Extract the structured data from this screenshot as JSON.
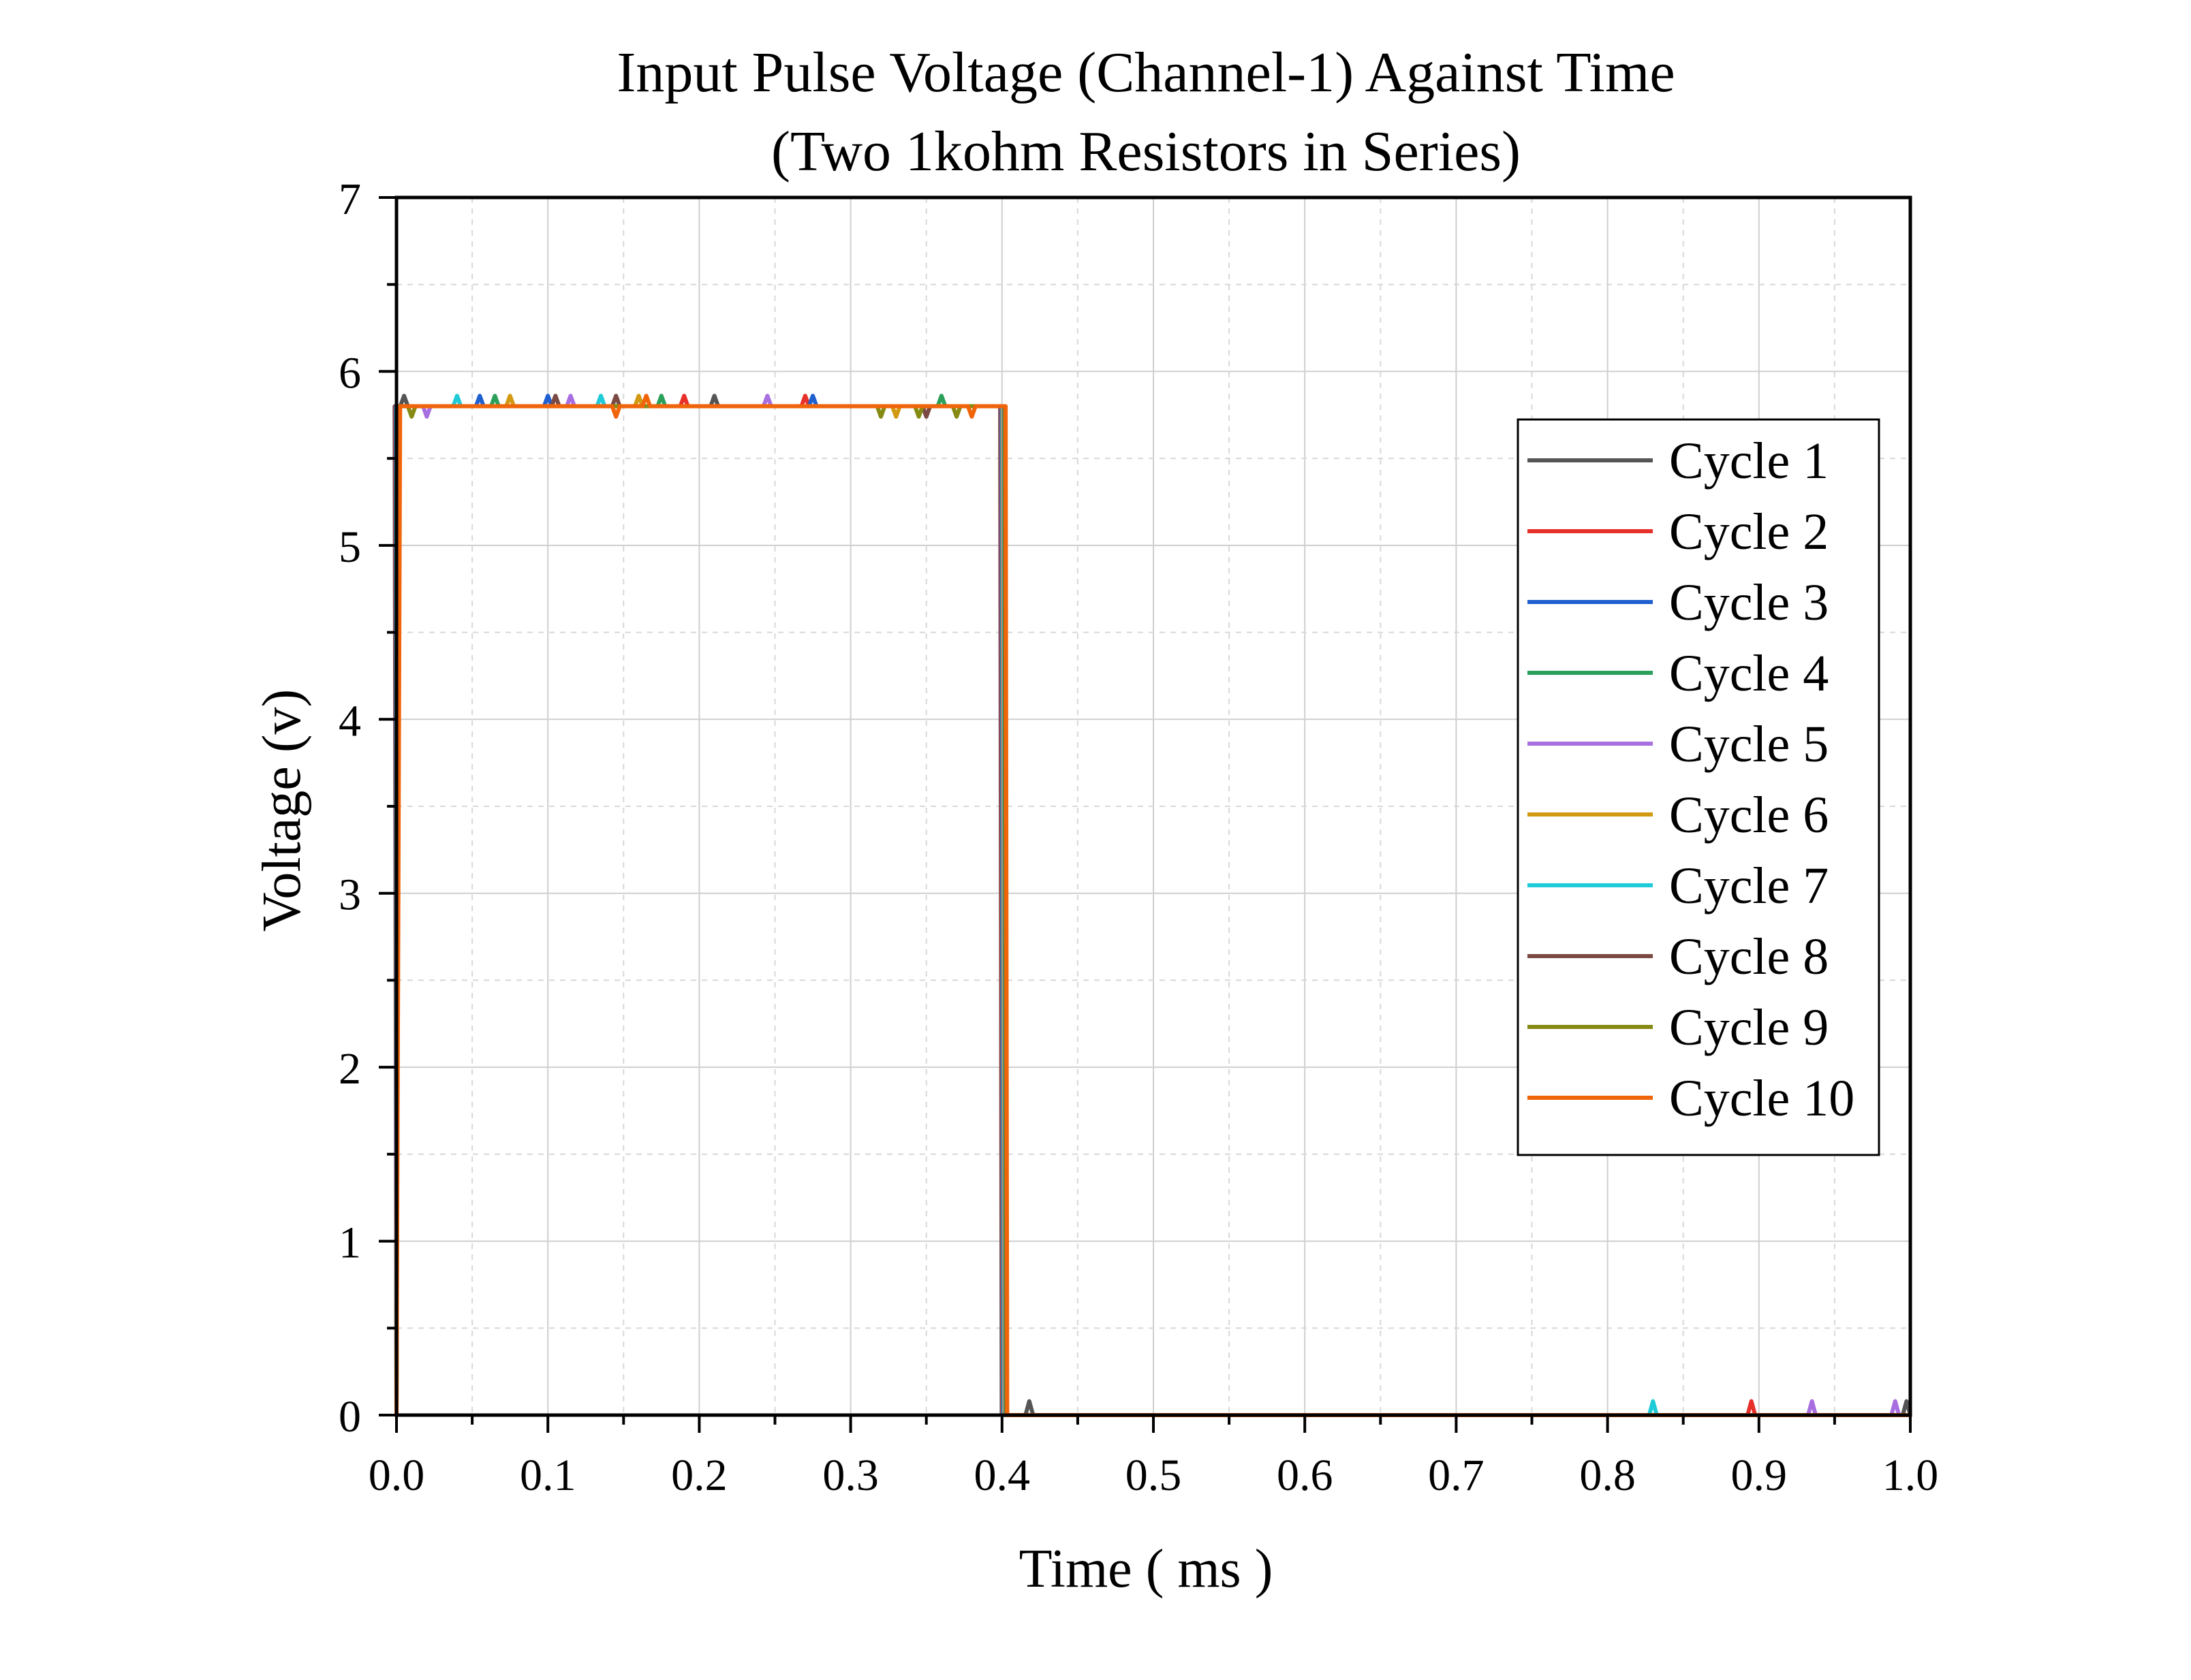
{
  "chart_data": {
    "type": "line",
    "title": "Input Pulse Voltage (Channel-1) Against Time",
    "subtitle": "(Two 1kohm Resistors in Series)",
    "xlabel": "Time ( ms )",
    "ylabel": "Voltage (v)",
    "xlim": [
      0.0,
      1.0
    ],
    "ylim": [
      0,
      7
    ],
    "x_ticks": [
      "0.0",
      "0.1",
      "0.2",
      "0.3",
      "0.4",
      "0.5",
      "0.6",
      "0.7",
      "0.8",
      "0.9",
      "1.0"
    ],
    "y_ticks": [
      "0",
      "1",
      "2",
      "3",
      "4",
      "5",
      "6",
      "7"
    ],
    "grid": true,
    "legend_position": "right",
    "pulse_shape": {
      "rise_at": 0.0,
      "fall_at": 0.4,
      "high": 5.8,
      "low": 0.0
    },
    "series": [
      {
        "name": "Cycle 1",
        "color": "#555555",
        "glitches": [
          [
            0.005,
            5.86
          ],
          [
            0.21,
            5.86
          ],
          [
            0.418,
            0.08
          ],
          [
            1.0,
            0.08
          ]
        ]
      },
      {
        "name": "Cycle 2",
        "color": "#e8302a",
        "glitches": [
          [
            0.19,
            5.86
          ],
          [
            0.27,
            5.86
          ],
          [
            0.895,
            0.08
          ]
        ]
      },
      {
        "name": "Cycle 3",
        "color": "#1f5fcf",
        "glitches": [
          [
            0.055,
            5.86
          ],
          [
            0.1,
            5.86
          ],
          [
            0.275,
            5.86
          ]
        ]
      },
      {
        "name": "Cycle 4",
        "color": "#2ca05a",
        "glitches": [
          [
            0.065,
            5.86
          ],
          [
            0.175,
            5.86
          ],
          [
            0.36,
            5.86
          ]
        ]
      },
      {
        "name": "Cycle 5",
        "color": "#a86fe0",
        "glitches": [
          [
            0.02,
            5.74
          ],
          [
            0.115,
            5.86
          ],
          [
            0.245,
            5.86
          ],
          [
            0.935,
            0.08
          ],
          [
            0.99,
            0.08
          ]
        ]
      },
      {
        "name": "Cycle 6",
        "color": "#d29a13",
        "glitches": [
          [
            0.075,
            5.86
          ],
          [
            0.16,
            5.86
          ],
          [
            0.33,
            5.74
          ]
        ]
      },
      {
        "name": "Cycle 7",
        "color": "#1ecbd6",
        "glitches": [
          [
            0.04,
            5.86
          ],
          [
            0.135,
            5.86
          ],
          [
            0.83,
            0.08
          ]
        ]
      },
      {
        "name": "Cycle 8",
        "color": "#7a4a43",
        "glitches": [
          [
            0.105,
            5.86
          ],
          [
            0.145,
            5.86
          ],
          [
            0.35,
            5.74
          ]
        ]
      },
      {
        "name": "Cycle 9",
        "color": "#858a12",
        "glitches": [
          [
            0.01,
            5.74
          ],
          [
            0.32,
            5.74
          ],
          [
            0.345,
            5.74
          ],
          [
            0.37,
            5.74
          ]
        ]
      },
      {
        "name": "Cycle 10",
        "color": "#f0640a",
        "glitches": [
          [
            0.145,
            5.74
          ],
          [
            0.165,
            5.86
          ],
          [
            0.38,
            5.74
          ]
        ]
      }
    ]
  }
}
